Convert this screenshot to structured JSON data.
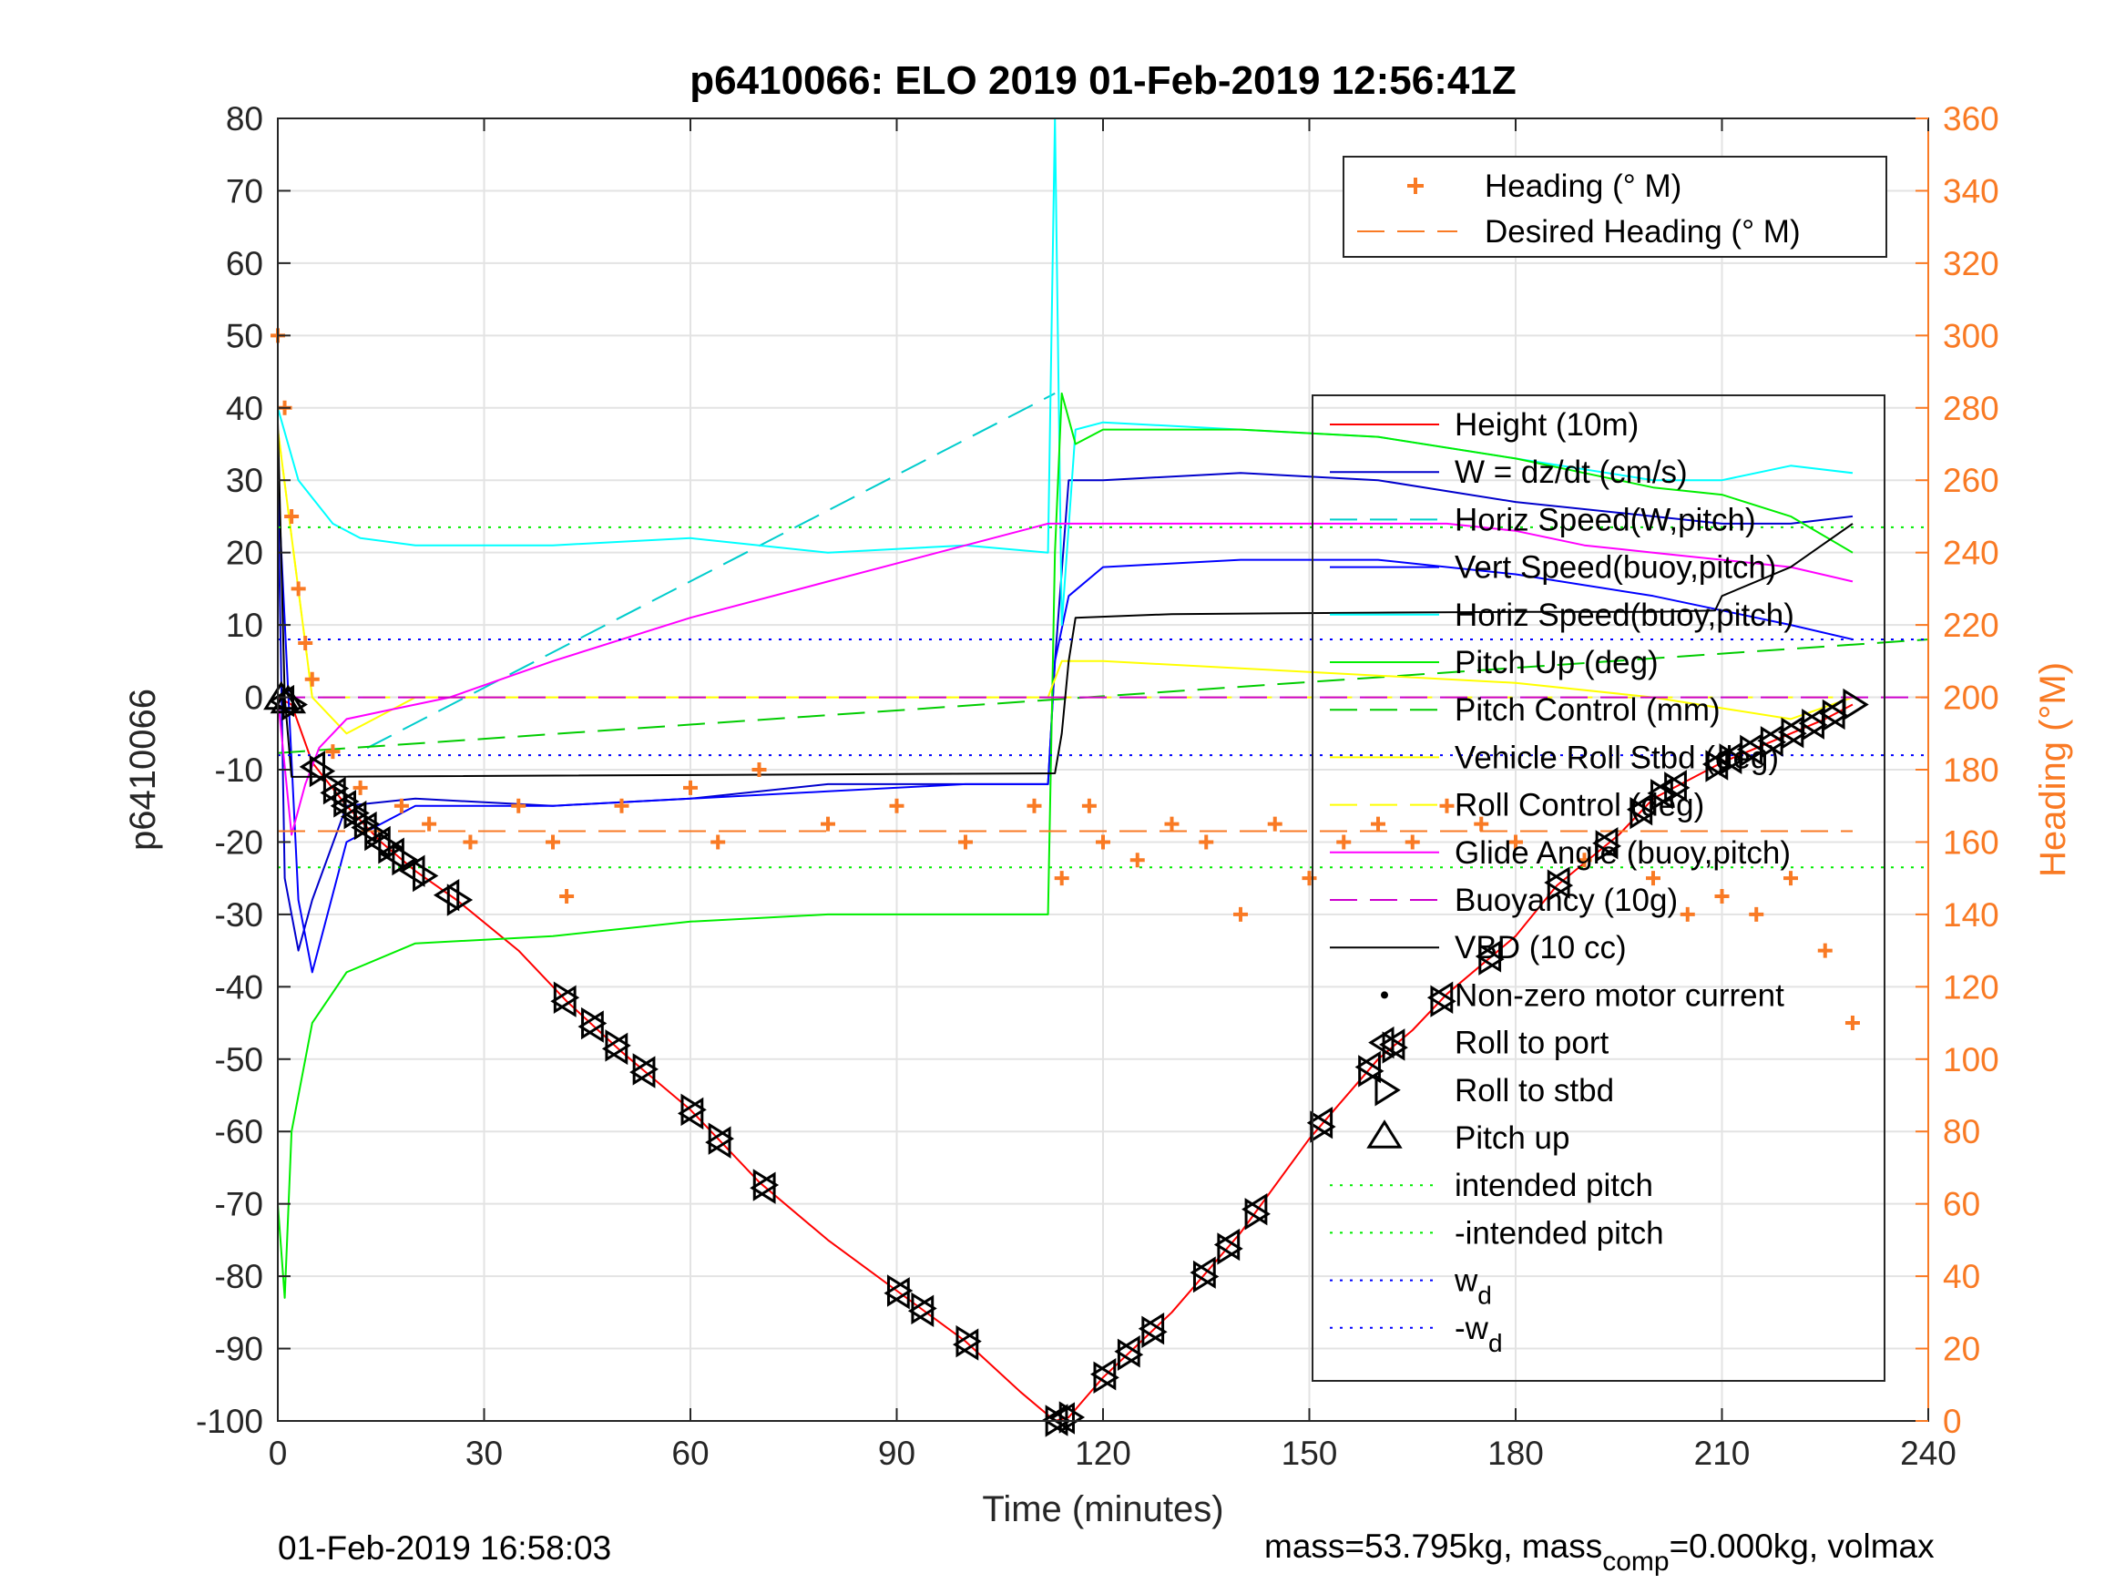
{
  "chart_data": {
    "type": "line",
    "title": "p6410066: ELO 2019 01-Feb-2019 12:56:41Z",
    "xlabel": "Time (minutes)",
    "ylabel": "p6410066",
    "ylabel_right": "Heading (°M)",
    "xlim": [
      0,
      240
    ],
    "ylim": [
      -100,
      80
    ],
    "ylim_right": [
      0,
      360
    ],
    "xticks": [
      "0",
      "30",
      "60",
      "90",
      "120",
      "150",
      "180",
      "210",
      "240"
    ],
    "yticks": [
      "80",
      "70",
      "60",
      "50",
      "40",
      "30",
      "20",
      "10",
      "0",
      "-10",
      "-20",
      "-30",
      "-40",
      "-50",
      "-60",
      "-70",
      "-80",
      "-90",
      "-100"
    ],
    "yticks_right": [
      "360",
      "340",
      "320",
      "300",
      "280",
      "260",
      "240",
      "220",
      "200",
      "180",
      "160",
      "140",
      "120",
      "100",
      "80",
      "60",
      "40",
      "20",
      "0"
    ],
    "grid": true,
    "legend_heading": {
      "placement": "top-right",
      "entries": [
        "Heading (° M)",
        "Desired Heading (° M)"
      ]
    },
    "legend_main": {
      "placement": "right",
      "entries": [
        "Height (10m)",
        "W = dz/dt (cm/s)",
        "Horiz Speed(W,pitch)",
        "Vert Speed(buoy,pitch)",
        "Horiz Speed(buoy,pitch)",
        "Pitch Up (deg)",
        "Pitch Control (mm)",
        "Vehicle Roll Stbd (deg)",
        "Roll Control (deg)",
        "Glide Angle (buoy,pitch)",
        "Buoyancy (10g)",
        "VBD (10 cc)",
        "Non-zero motor current",
        "Roll to port",
        "Roll to stbd",
        "Pitch up",
        "intended pitch",
        "-intended pitch",
        "w",
        "-w"
      ],
      "subscript": "d"
    },
    "colors": {
      "height": "#ff0000",
      "w": "#0000cc",
      "horiz_speed_w": "#00cccc",
      "vert_speed_buoy": "#0000ff",
      "horiz_speed_buoy": "#00ffff",
      "pitch_up": "#00ee00",
      "pitch_control": "#00cc00",
      "roll": "#ffff00",
      "glide": "#ff00ff",
      "buoyancy": "#cc00cc",
      "vbd": "#000000",
      "heading": "#f97a24",
      "intended_pitch": "#00ee00",
      "wd": "#0000ff"
    },
    "series": [
      {
        "name": "Height (10m)",
        "x": [
          0,
          2,
          5,
          10,
          15,
          20,
          26,
          35,
          42,
          50,
          55,
          60,
          65,
          70,
          80,
          90,
          100,
          108,
          113,
          115,
          120,
          130,
          140,
          150,
          160,
          165,
          170,
          180,
          186,
          195,
          200,
          210,
          220,
          225,
          229
        ],
        "y": [
          0,
          -1,
          -9,
          -15,
          -20,
          -24,
          -28,
          -35,
          -42,
          -49,
          -53,
          -57,
          -62,
          -67,
          -75,
          -82,
          -89,
          -96,
          -100,
          -99.5,
          -94,
          -85,
          -74,
          -61,
          -50,
          -46,
          -41,
          -33,
          -26,
          -19,
          -14,
          -9,
          -5,
          -3,
          -1
        ]
      },
      {
        "name": "W = dz/dt (cm/s)",
        "x": [
          0,
          1,
          3,
          5,
          10,
          20,
          40,
          60,
          80,
          100,
          112,
          113,
          115,
          120,
          140,
          160,
          180,
          200,
          210,
          220,
          229
        ],
        "y": [
          30,
          -25,
          -35,
          -28,
          -15,
          -14,
          -15,
          -14,
          -12,
          -12,
          -12,
          5,
          30,
          30,
          31,
          30,
          27,
          25,
          24,
          24,
          25
        ]
      },
      {
        "name": "Horiz Speed(W,pitch)",
        "x": [
          13,
          113
        ],
        "y": [
          -7,
          42
        ]
      },
      {
        "name": "Vert Speed(buoy,pitch)",
        "x": [
          0,
          3,
          5,
          10,
          20,
          40,
          60,
          80,
          100,
          112,
          113,
          115,
          120,
          140,
          160,
          180,
          200,
          210,
          220,
          229
        ],
        "y": [
          30,
          -28,
          -38,
          -20,
          -15,
          -15,
          -14,
          -13,
          -12,
          -12,
          5,
          14,
          18,
          19,
          19,
          17,
          14,
          12,
          10,
          8
        ]
      },
      {
        "name": "Horiz Speed(buoy,pitch)",
        "x": [
          0,
          3,
          8,
          12,
          20,
          40,
          60,
          80,
          100,
          112,
          113,
          114,
          116,
          120,
          140,
          160,
          180,
          200,
          210,
          220,
          229
        ],
        "y": [
          40,
          30,
          24,
          22,
          21,
          21,
          22,
          20,
          21,
          20,
          80,
          10,
          37,
          38,
          37,
          36,
          33,
          30,
          30,
          32,
          31
        ]
      },
      {
        "name": "Pitch Up (deg)",
        "x": [
          0,
          1,
          2,
          5,
          10,
          20,
          40,
          60,
          80,
          100,
          112,
          113,
          114,
          116,
          120,
          140,
          160,
          180,
          200,
          210,
          220,
          229
        ],
        "y": [
          -70,
          -83,
          -60,
          -45,
          -38,
          -34,
          -33,
          -31,
          -30,
          -30,
          -30,
          20,
          42,
          35,
          37,
          37,
          36,
          33,
          29,
          28,
          25,
          20
        ]
      },
      {
        "name": "Pitch Control (mm)",
        "x": [
          0,
          240
        ],
        "y": [
          -7.7,
          8
        ]
      },
      {
        "name": "Vehicle Roll Stbd (deg)",
        "x": [
          0,
          5,
          10,
          20,
          40,
          60,
          80,
          100,
          112,
          114,
          120,
          140,
          160,
          180,
          200,
          220,
          229
        ],
        "y": [
          37,
          0,
          -5,
          0,
          0,
          0,
          0,
          0,
          0,
          5,
          5,
          4,
          3,
          2,
          0,
          -3,
          0
        ]
      },
      {
        "name": "Roll Control (deg)",
        "x": [
          0,
          5,
          229
        ],
        "y": [
          37,
          0,
          0
        ]
      },
      {
        "name": "Glide Angle (buoy,pitch)",
        "x": [
          0,
          2,
          4,
          6,
          10,
          15,
          25,
          40,
          60,
          80,
          100,
          112,
          115,
          130,
          150,
          170,
          180,
          190,
          200,
          210,
          220,
          229
        ],
        "y": [
          0,
          -19,
          -12,
          -7,
          -3,
          -2,
          0,
          5,
          11,
          16,
          21,
          24,
          24,
          24,
          24,
          24,
          23,
          21,
          20,
          19,
          18,
          16
        ]
      },
      {
        "name": "Buoyancy (10g)",
        "x": [
          0,
          240
        ],
        "y": [
          0,
          0
        ]
      },
      {
        "name": "VBD (10 cc)",
        "x": [
          0,
          1,
          2,
          113,
          114,
          115,
          116,
          130,
          160,
          180,
          200,
          209,
          210,
          215,
          220,
          229
        ],
        "y": [
          38,
          0,
          -11,
          -10.5,
          -5,
          5,
          11,
          11.5,
          11.7,
          11.8,
          11.8,
          12,
          14,
          16,
          18,
          24
        ]
      },
      {
        "name": "Heading (° M)",
        "axis": "right",
        "x": [
          0,
          1,
          2,
          3,
          4,
          5,
          8,
          12,
          18,
          22,
          28,
          35,
          40,
          42,
          50,
          60,
          64,
          70,
          80,
          90,
          100,
          110,
          114,
          118,
          120,
          125,
          130,
          135,
          140,
          145,
          150,
          155,
          160,
          165,
          170,
          175,
          180,
          190,
          200,
          205,
          210,
          215,
          220,
          225,
          229
        ],
        "y": [
          300,
          280,
          250,
          230,
          215,
          205,
          185,
          175,
          170,
          165,
          160,
          170,
          160,
          145,
          170,
          175,
          160,
          180,
          165,
          170,
          160,
          170,
          150,
          170,
          160,
          155,
          165,
          160,
          140,
          165,
          150,
          160,
          165,
          160,
          170,
          165,
          160,
          155,
          150,
          140,
          145,
          140,
          150,
          130,
          110
        ]
      },
      {
        "name": "Desired Heading (° M)",
        "axis": "right",
        "x": [
          0,
          229
        ],
        "y": [
          163,
          163
        ]
      },
      {
        "name": "intended pitch",
        "x": [
          0,
          240
        ],
        "y": [
          23.5,
          23.5
        ]
      },
      {
        "name": "-intended pitch",
        "x": [
          0,
          240
        ],
        "y": [
          -23.5,
          -23.5
        ]
      },
      {
        "name": "w",
        "x": [
          0,
          240
        ],
        "y": [
          8,
          8
        ]
      },
      {
        "name": "-w",
        "x": [
          0,
          240
        ],
        "y": [
          -8,
          -8
        ]
      }
    ],
    "markers": {
      "pitch_up_time": [
        0.5,
        1.5
      ],
      "roll_to_stbd_times": [
        2,
        6,
        8,
        9.5,
        11,
        12.5,
        14,
        16,
        18,
        21,
        26,
        41.5,
        45.5,
        49,
        53,
        60,
        64,
        70.5,
        90,
        93.5,
        100,
        113,
        115,
        120,
        123.5,
        127,
        134.5,
        138,
        142,
        151.5,
        158.5,
        162,
        169,
        176,
        186,
        193,
        198,
        201,
        203,
        209,
        211,
        214,
        217,
        220,
        223,
        226,
        229
      ],
      "roll_to_port_times": [
        1,
        5.5,
        8.5,
        10,
        11.5,
        13,
        15,
        17,
        20,
        25,
        42,
        46,
        49.5,
        53.5,
        60.5,
        64.5,
        71,
        90.5,
        94,
        100.5,
        113.5,
        114.5,
        120.5,
        124,
        127.5,
        135,
        138.5,
        142.5,
        152,
        159,
        162.5,
        169.5,
        176.5,
        186.5,
        193.5,
        198.5,
        201.5,
        203.5,
        209.5,
        211.5,
        214.5,
        217.5,
        220.5,
        223.5,
        226.5
      ]
    }
  },
  "footer": {
    "left": "01-Feb-2019 16:58:03",
    "right_prefix": "mass=53.795kg, mass",
    "right_sub": "comp",
    "right_suffix": "=0.000kg, volmax"
  }
}
